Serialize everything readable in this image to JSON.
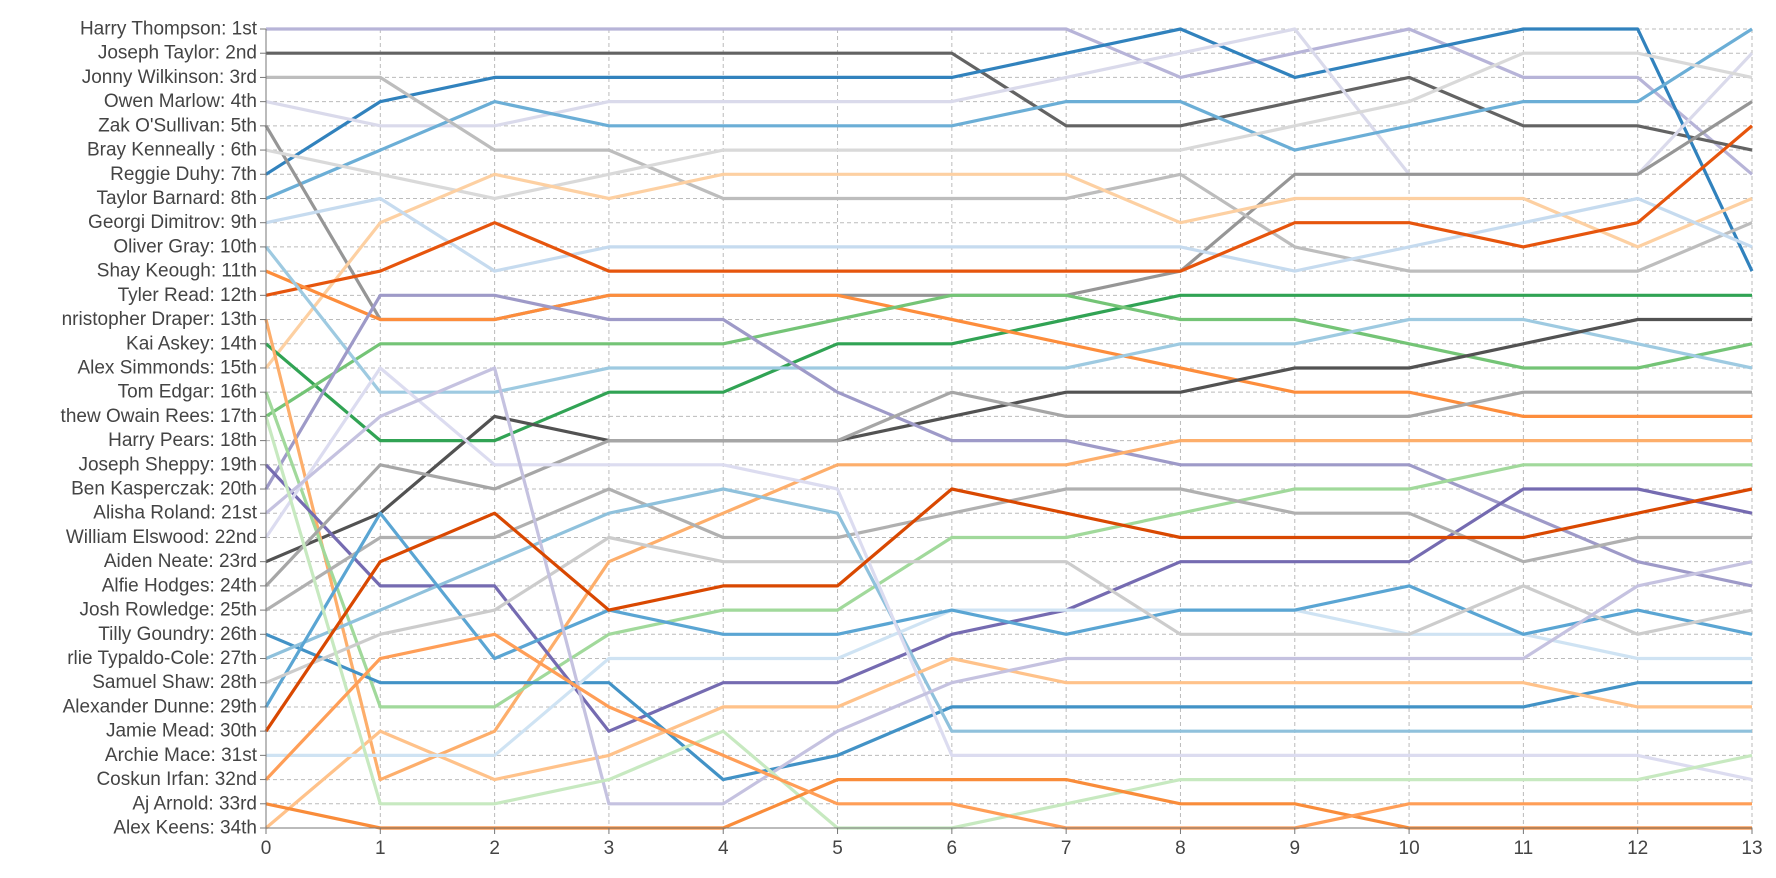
{
  "chart_data": {
    "type": "line",
    "title": "",
    "xlabel": "",
    "ylabel": "",
    "x": [
      0,
      1,
      2,
      3,
      4,
      5,
      6,
      7,
      8,
      9,
      10,
      11,
      12,
      13
    ],
    "xlim": [
      0,
      13
    ],
    "ylim": [
      1,
      34
    ],
    "y_inverted": true,
    "grid": true,
    "y_tick_labels": [
      "Harry Thompson: 1st",
      "Joseph Taylor: 2nd",
      "Jonny Wilkinson: 3rd",
      "Owen Marlow: 4th",
      "Zak O'Sullivan: 5th",
      "Bray Kenneally : 6th",
      "Reggie Duhy: 7th",
      "Taylor Barnard: 8th",
      "Georgi Dimitrov: 9th",
      "Oliver Gray: 10th",
      "Shay Keough: 11th",
      "Tyler Read: 12th",
      "nristopher Draper: 13th",
      "Kai Askey: 14th",
      "Alex Simmonds: 15th",
      "Tom Edgar: 16th",
      "thew Owain Rees: 17th",
      "Harry Pears: 18th",
      "Joseph Sheppy: 19th",
      "Ben Kasperczak: 20th",
      "Alisha Roland: 21st",
      "William Elswood: 22nd",
      "Aiden Neate: 23rd",
      "Alfie Hodges: 24th",
      "Josh Rowledge: 25th",
      "Tilly Goundry: 26th",
      "rlie Typaldo-Cole: 27th",
      "Samuel Shaw: 28th",
      "Alexander Dunne: 29th",
      "Jamie Mead: 30th",
      "Archie Mace: 31st",
      "Coskun Irfan: 32nd",
      "Aj Arnold: 33rd",
      "Alex Keens: 34th"
    ],
    "series": [
      {
        "color": "#b7b4d8",
        "values": [
          1,
          1,
          1,
          1,
          1,
          1,
          1,
          1,
          3,
          2,
          1,
          3,
          3,
          7
        ]
      },
      {
        "color": "#636363",
        "values": [
          2,
          2,
          2,
          2,
          2,
          2,
          2,
          5,
          5,
          4,
          3,
          5,
          5,
          6
        ]
      },
      {
        "color": "#3182bd",
        "values": [
          7,
          4,
          3,
          3,
          3,
          3,
          3,
          2,
          1,
          3,
          2,
          1,
          1,
          11
        ]
      },
      {
        "color": "#dadaeb",
        "values": [
          4,
          5,
          5,
          4,
          4,
          4,
          4,
          3,
          2,
          1,
          7,
          7,
          7,
          2
        ]
      },
      {
        "color": "#6baed6",
        "values": [
          8,
          6,
          4,
          5,
          5,
          5,
          5,
          4,
          4,
          6,
          5,
          4,
          4,
          1
        ]
      },
      {
        "color": "#969696",
        "values": [
          5,
          13,
          13,
          12,
          12,
          12,
          12,
          12,
          11,
          7,
          7,
          7,
          7,
          4
        ]
      },
      {
        "color": "#bdbdbd",
        "values": [
          3,
          3,
          6,
          6,
          8,
          8,
          8,
          8,
          7,
          10,
          11,
          11,
          11,
          9
        ]
      },
      {
        "color": "#d9d9d9",
        "values": [
          6,
          7,
          8,
          7,
          6,
          6,
          6,
          6,
          6,
          5,
          4,
          2,
          2,
          3
        ]
      },
      {
        "color": "#fdd0a2",
        "values": [
          15,
          9,
          7,
          8,
          7,
          7,
          7,
          7,
          9,
          8,
          8,
          8,
          10,
          8
        ]
      },
      {
        "color": "#c6dbef",
        "values": [
          9,
          8,
          11,
          10,
          10,
          10,
          10,
          10,
          10,
          11,
          10,
          9,
          8,
          10
        ]
      },
      {
        "color": "#e6550d",
        "values": [
          12,
          11,
          9,
          11,
          11,
          11,
          11,
          11,
          11,
          9,
          9,
          10,
          9,
          5
        ]
      },
      {
        "color": "#31a354",
        "values": [
          14,
          18,
          18,
          16,
          16,
          14,
          14,
          13,
          12,
          12,
          12,
          12,
          12,
          12
        ]
      },
      {
        "color": "#fd8d3c",
        "values": [
          11,
          13,
          13,
          12,
          12,
          12,
          13,
          14,
          15,
          16,
          16,
          17,
          17,
          17
        ]
      },
      {
        "color": "#74c476",
        "values": [
          17,
          14,
          14,
          14,
          14,
          13,
          12,
          12,
          13,
          13,
          14,
          15,
          15,
          14
        ]
      },
      {
        "color": "#9ecae1",
        "values": [
          10,
          16,
          16,
          15,
          15,
          15,
          15,
          15,
          14,
          14,
          13,
          13,
          14,
          15
        ]
      },
      {
        "color": "#525252",
        "values": [
          23,
          21,
          17,
          18,
          18,
          18,
          17,
          16,
          16,
          15,
          15,
          14,
          13,
          13
        ]
      },
      {
        "color": "#9e9ac8",
        "values": [
          20,
          12,
          12,
          13,
          13,
          16,
          18,
          18,
          19,
          19,
          19,
          21,
          23,
          24
        ]
      },
      {
        "color": "#fdae6b",
        "values": [
          13,
          32,
          30,
          23,
          21,
          19,
          19,
          19,
          18,
          18,
          18,
          18,
          18,
          18
        ]
      },
      {
        "color": "#a1d99b",
        "values": [
          16,
          29,
          29,
          26,
          25,
          25,
          22,
          22,
          21,
          20,
          20,
          19,
          19,
          19
        ]
      },
      {
        "color": "#756bb1",
        "values": [
          19,
          24,
          24,
          30,
          28,
          28,
          26,
          25,
          23,
          23,
          23,
          20,
          20,
          21
        ]
      },
      {
        "color": "#a6a6a6",
        "values": [
          24,
          19,
          20,
          18,
          18,
          18,
          16,
          17,
          17,
          17,
          17,
          16,
          16,
          16
        ]
      },
      {
        "color": "#b0b0b0",
        "values": [
          25,
          22,
          22,
          20,
          22,
          22,
          21,
          20,
          20,
          21,
          21,
          23,
          22,
          22
        ]
      },
      {
        "color": "#4292c6",
        "values": [
          26,
          28,
          28,
          28,
          32,
          31,
          29,
          29,
          29,
          29,
          29,
          29,
          28,
          28
        ]
      },
      {
        "color": "#8fc1dc",
        "values": [
          27,
          25,
          23,
          21,
          20,
          21,
          30,
          30,
          30,
          30,
          30,
          30,
          30,
          30
        ]
      },
      {
        "color": "#ffc28a",
        "values": [
          34,
          30,
          32,
          31,
          29,
          29,
          27,
          28,
          28,
          28,
          28,
          28,
          29,
          29
        ]
      },
      {
        "color": "#cfe3f3",
        "values": [
          31,
          31,
          31,
          27,
          27,
          27,
          25,
          25,
          25,
          25,
          26,
          26,
          27,
          27
        ]
      },
      {
        "color": "#5aa5d3",
        "values": [
          29,
          21,
          27,
          25,
          26,
          26,
          25,
          26,
          25,
          25,
          24,
          26,
          25,
          26
        ]
      },
      {
        "color": "#cccccc",
        "values": [
          28,
          26,
          25,
          22,
          23,
          23,
          23,
          23,
          26,
          26,
          26,
          24,
          26,
          25
        ]
      },
      {
        "color": "#dcdcf0",
        "values": [
          22,
          15,
          19,
          19,
          19,
          20,
          31,
          31,
          31,
          31,
          31,
          31,
          31,
          32
        ]
      },
      {
        "color": "#c5c2e0",
        "values": [
          21,
          17,
          15,
          33,
          33,
          30,
          28,
          27,
          27,
          27,
          27,
          27,
          24,
          23
        ]
      },
      {
        "color": "#c7e9c0",
        "values": [
          17,
          33,
          33,
          32,
          30,
          34,
          34,
          33,
          32,
          32,
          32,
          32,
          32,
          31
        ]
      },
      {
        "color": "#d94801",
        "values": [
          30,
          23,
          21,
          25,
          24,
          24,
          20,
          21,
          22,
          22,
          22,
          22,
          21,
          20
        ]
      },
      {
        "color": "#f98c3a",
        "values": [
          33,
          34,
          34,
          34,
          34,
          32,
          32,
          32,
          33,
          33,
          34,
          34,
          34,
          34
        ]
      },
      {
        "color": "#ff9e57",
        "values": [
          32,
          27,
          26,
          29,
          31,
          33,
          33,
          34,
          34,
          34,
          33,
          33,
          33,
          33
        ]
      }
    ]
  }
}
